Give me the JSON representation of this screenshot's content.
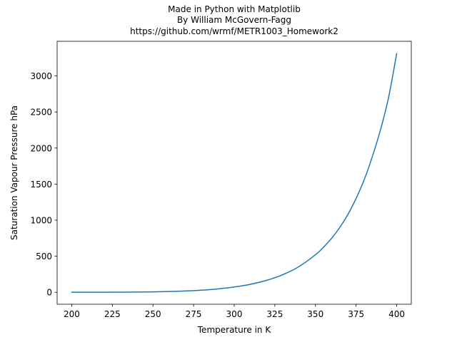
{
  "chart_data": {
    "type": "line",
    "title_lines": [
      "Made in Python with Matplotlib",
      "By William McGovern-Fagg",
      "https://github.com/wrmf/METR1003_Homework2"
    ],
    "xlabel": "Temperature in K",
    "ylabel": "Saturation Vapour Pressure hPa",
    "xlim": [
      191,
      409
    ],
    "ylim": [
      -166,
      3480
    ],
    "x_ticks": [
      200,
      225,
      250,
      275,
      300,
      325,
      350,
      375,
      400
    ],
    "y_ticks": [
      0,
      500,
      1000,
      1500,
      2000,
      2500,
      3000
    ],
    "x_tick_labels": [
      "200",
      "225",
      "250",
      "275",
      "300",
      "325",
      "350",
      "375",
      "400"
    ],
    "y_tick_labels": [
      "0",
      "500",
      "1000",
      "1500",
      "2000",
      "2500",
      "3000"
    ],
    "grid": false,
    "series": [
      {
        "color": "#1f77b4",
        "x": [
          200,
          210,
          220,
          230,
          240,
          250,
          260,
          270,
          280,
          290,
          300,
          310,
          320,
          330,
          340,
          350,
          355,
          360,
          365,
          370,
          375,
          380,
          385,
          390,
          395,
          400
        ],
        "values": [
          0.16,
          0.37,
          0.8,
          1.6,
          3.1,
          5.8,
          10.3,
          17.6,
          29.2,
          46.9,
          73.2,
          111,
          166,
          245,
          358,
          520,
          625,
          750,
          900,
          1080,
          1300,
          1560,
          1880,
          2250,
          2700,
          3310
        ]
      }
    ]
  }
}
